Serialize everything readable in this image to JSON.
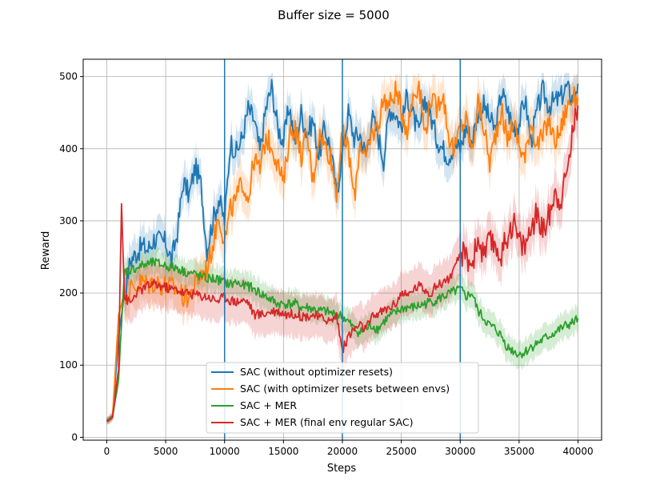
{
  "chart_data": {
    "type": "line",
    "title": "Buffer size = 5000",
    "xlabel": "Steps",
    "ylabel": "Reward",
    "xlim": [
      -2000,
      42000
    ],
    "ylim": [
      -4,
      524
    ],
    "xticks": [
      0,
      5000,
      10000,
      15000,
      20000,
      25000,
      30000,
      35000,
      40000
    ],
    "xtick_labels": [
      "0",
      "5000",
      "10000",
      "15000",
      "20000",
      "25000",
      "30000",
      "35000",
      "40000"
    ],
    "yticks": [
      0,
      100,
      200,
      300,
      400,
      500
    ],
    "ytick_labels": [
      "0",
      "100",
      "200",
      "300",
      "400",
      "500"
    ],
    "grid": true,
    "legend_position": "bottom-center",
    "vertical_lines": [
      10000,
      20000,
      30000
    ],
    "vertical_line_color": "#1f77b4",
    "series": [
      {
        "name": "SAC (without optimizer resets)",
        "color": "#1f77b4",
        "x": [
          0,
          500,
          1000,
          1500,
          2000,
          2500,
          3000,
          3500,
          4000,
          4500,
          5000,
          5500,
          6000,
          6500,
          7000,
          7500,
          8000,
          8500,
          9000,
          9500,
          10000,
          10500,
          11000,
          11500,
          12000,
          12500,
          13000,
          13500,
          14000,
          14500,
          15000,
          15500,
          16000,
          16500,
          17000,
          17500,
          18000,
          18500,
          19000,
          19500,
          20000,
          20500,
          21000,
          21500,
          22000,
          22500,
          23000,
          23500,
          24000,
          24500,
          25000,
          25500,
          26000,
          26500,
          27000,
          27500,
          28000,
          28500,
          29000,
          29500,
          30000,
          30500,
          31000,
          31500,
          32000,
          32500,
          33000,
          33500,
          34000,
          34500,
          35000,
          35500,
          36000,
          36500,
          37000,
          37500,
          38000,
          38500,
          39000,
          39500,
          40000
        ],
        "y": [
          22,
          30,
          140,
          200,
          245,
          255,
          265,
          260,
          275,
          272,
          270,
          245,
          285,
          355,
          335,
          375,
          350,
          260,
          300,
          330,
          300,
          410,
          395,
          415,
          455,
          440,
          395,
          455,
          485,
          430,
          410,
          460,
          405,
          450,
          420,
          440,
          390,
          430,
          400,
          335,
          395,
          450,
          415,
          420,
          390,
          445,
          420,
          385,
          455,
          450,
          430,
          475,
          445,
          420,
          470,
          445,
          415,
          400,
          390,
          405,
          400,
          430,
          410,
          450,
          460,
          440,
          425,
          480,
          455,
          430,
          435,
          470,
          410,
          450,
          480,
          460,
          465,
          470,
          485,
          470,
          490
        ],
        "band": 25
      },
      {
        "name": "SAC (with optimizer resets between envs)",
        "color": "#ff7f0e",
        "x": [
          0,
          500,
          1000,
          1500,
          2000,
          2500,
          3000,
          3500,
          4000,
          4500,
          5000,
          5500,
          6000,
          6500,
          7000,
          7500,
          8000,
          8500,
          9000,
          9500,
          10000,
          10500,
          11000,
          11500,
          12000,
          12500,
          13000,
          13500,
          14000,
          14500,
          15000,
          15500,
          16000,
          16500,
          17000,
          17500,
          18000,
          18500,
          19000,
          19500,
          20000,
          20500,
          21000,
          21500,
          22000,
          22500,
          23000,
          23500,
          24000,
          24500,
          25000,
          25500,
          26000,
          26500,
          27000,
          27500,
          28000,
          28500,
          29000,
          29500,
          30000,
          30500,
          31000,
          31500,
          32000,
          32500,
          33000,
          33500,
          34000,
          34500,
          35000,
          35500,
          36000,
          36500,
          37000,
          37500,
          38000,
          38500,
          39000,
          39500,
          40000
        ],
        "y": [
          22,
          30,
          170,
          200,
          205,
          210,
          215,
          212,
          215,
          212,
          210,
          208,
          205,
          195,
          195,
          210,
          225,
          235,
          265,
          310,
          270,
          315,
          330,
          355,
          330,
          385,
          370,
          415,
          405,
          380,
          350,
          420,
          430,
          390,
          420,
          355,
          420,
          405,
          390,
          340,
          420,
          400,
          330,
          410,
          385,
          420,
          430,
          470,
          460,
          480,
          455,
          425,
          475,
          490,
          420,
          470,
          455,
          480,
          420,
          395,
          430,
          440,
          395,
          465,
          430,
          380,
          420,
          455,
          410,
          440,
          405,
          385,
          440,
          405,
          415,
          440,
          410,
          425,
          455,
          470,
          470
        ],
        "band": 28
      },
      {
        "name": "SAC + MER",
        "color": "#2ca02c",
        "x": [
          0,
          500,
          1000,
          1500,
          2000,
          2500,
          3000,
          3500,
          4000,
          4500,
          5000,
          5500,
          6000,
          6500,
          7000,
          7500,
          8000,
          8500,
          9000,
          9500,
          10000,
          10500,
          11000,
          11500,
          12000,
          12500,
          13000,
          13500,
          14000,
          14500,
          15000,
          15500,
          16000,
          16500,
          17000,
          17500,
          18000,
          18500,
          19000,
          19500,
          20000,
          20500,
          21000,
          21500,
          22000,
          22500,
          23000,
          23500,
          24000,
          24500,
          25000,
          25500,
          26000,
          26500,
          27000,
          27500,
          28000,
          28500,
          29000,
          29500,
          30000,
          30500,
          31000,
          31500,
          32000,
          32500,
          33000,
          33500,
          34000,
          34500,
          35000,
          35500,
          36000,
          36500,
          37000,
          37500,
          38000,
          38500,
          39000,
          39500,
          40000
        ],
        "y": [
          22,
          28,
          80,
          230,
          232,
          235,
          238,
          240,
          242,
          240,
          238,
          235,
          235,
          230,
          228,
          226,
          222,
          220,
          220,
          218,
          215,
          212,
          215,
          210,
          210,
          205,
          200,
          195,
          190,
          185,
          185,
          185,
          185,
          180,
          180,
          178,
          175,
          175,
          172,
          170,
          168,
          160,
          150,
          145,
          150,
          155,
          150,
          160,
          168,
          172,
          178,
          180,
          180,
          182,
          185,
          188,
          190,
          195,
          198,
          202,
          205,
          195,
          200,
          175,
          165,
          155,
          150,
          140,
          125,
          120,
          115,
          118,
          125,
          130,
          135,
          140,
          145,
          150,
          155,
          158,
          165
        ],
        "band": 18
      },
      {
        "name": "SAC + MER (final env regular SAC)",
        "color": "#d62728",
        "x": [
          0,
          500,
          1000,
          1250,
          1500,
          2000,
          2500,
          3000,
          3500,
          4000,
          4500,
          5000,
          5500,
          6000,
          6500,
          7000,
          7500,
          8000,
          8500,
          9000,
          9500,
          10000,
          10500,
          11000,
          11500,
          12000,
          12500,
          13000,
          13500,
          14000,
          14500,
          15000,
          15500,
          16000,
          16500,
          17000,
          17500,
          18000,
          18500,
          19000,
          19500,
          20000,
          20500,
          21000,
          21500,
          22000,
          22500,
          23000,
          23500,
          24000,
          24500,
          25000,
          25500,
          26000,
          26500,
          27000,
          27500,
          28000,
          28500,
          29000,
          29500,
          30000,
          30500,
          31000,
          31500,
          32000,
          32500,
          33000,
          33500,
          34000,
          34500,
          35000,
          35500,
          36000,
          36500,
          37000,
          37500,
          38000,
          38500,
          39000,
          39500,
          40000
        ],
        "y": [
          22,
          28,
          95,
          325,
          195,
          185,
          200,
          205,
          210,
          212,
          210,
          208,
          205,
          205,
          200,
          200,
          198,
          196,
          195,
          192,
          190,
          195,
          190,
          188,
          190,
          188,
          170,
          170,
          172,
          175,
          175,
          172,
          170,
          172,
          168,
          168,
          170,
          165,
          165,
          160,
          170,
          120,
          140,
          150,
          155,
          150,
          165,
          172,
          175,
          180,
          185,
          200,
          195,
          205,
          210,
          205,
          200,
          210,
          215,
          220,
          230,
          255,
          250,
          240,
          275,
          250,
          270,
          265,
          250,
          280,
          300,
          270,
          265,
          290,
          310,
          285,
          305,
          340,
          330,
          360,
          420,
          460
        ],
        "band": 30
      }
    ]
  }
}
